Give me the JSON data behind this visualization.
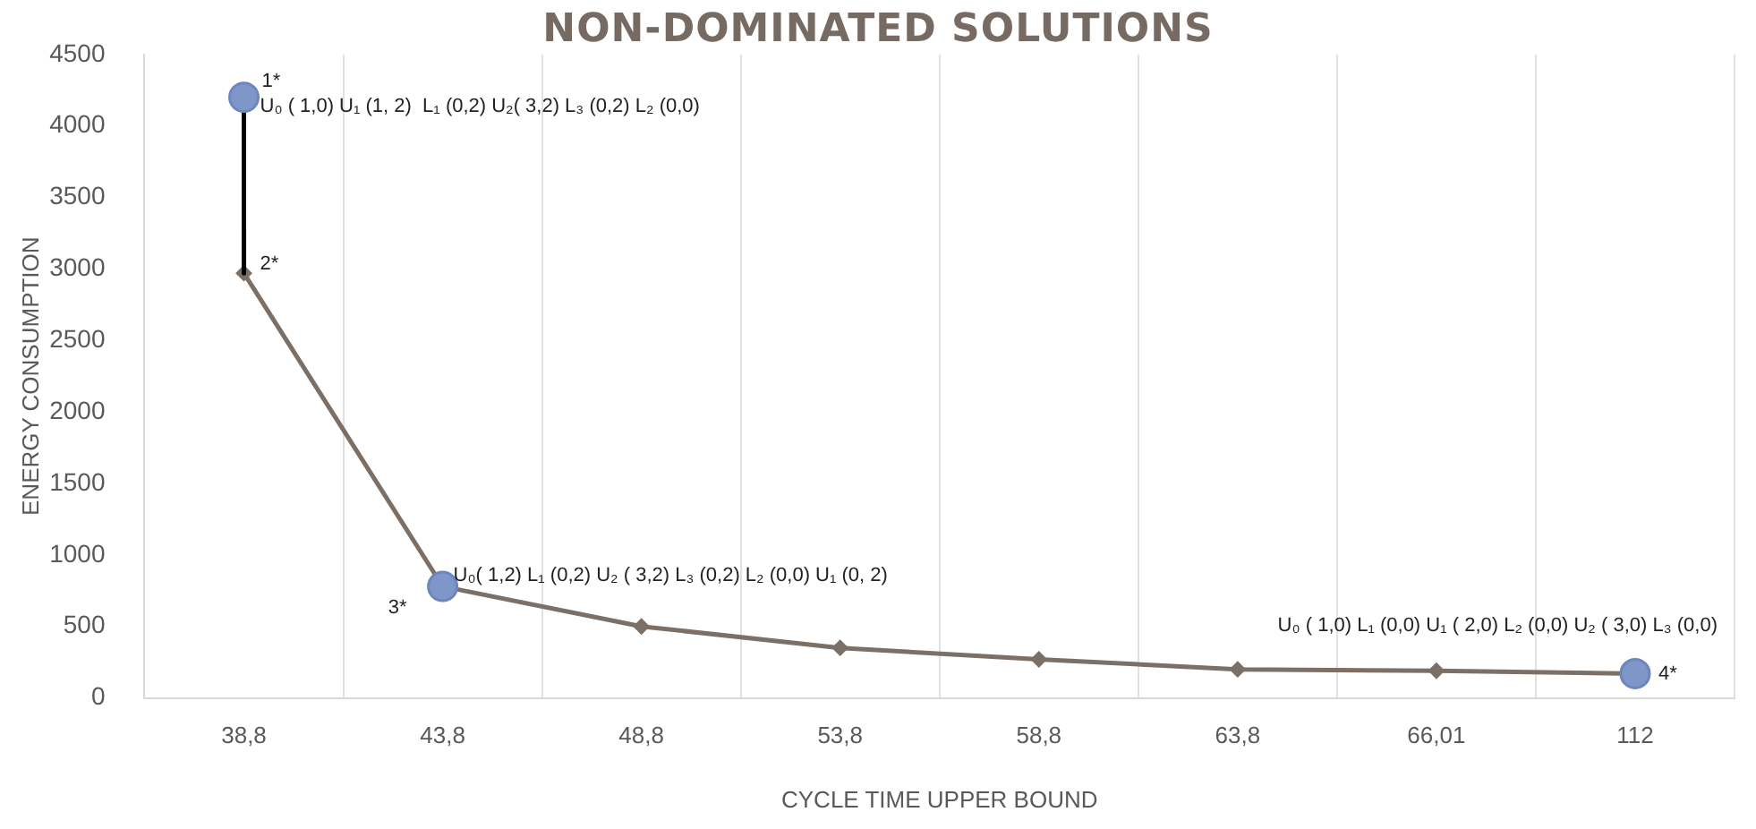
{
  "chart_data": {
    "type": "line",
    "title": "NON-DOMINATED SOLUTIONS",
    "xlabel": "CYCLE TIME UPPER BOUND",
    "ylabel": "ENERGY CONSUMPTION",
    "categories": [
      "38,8",
      "43,8",
      "48,8",
      "53,8",
      "58,8",
      "63,8",
      "66,01",
      "112"
    ],
    "series": [
      {
        "type": "line",
        "color": "#000000",
        "marker": "none",
        "x": [
          "38,8",
          "38,8"
        ],
        "values": [
          4200,
          2970
        ]
      },
      {
        "color": "#7b6f66",
        "marker": "diamond",
        "values": [
          2970,
          780,
          500,
          350,
          270,
          200,
          190,
          170
        ]
      },
      {
        "type": "scatter",
        "color": "#7f96c8",
        "marker": "circle",
        "x": [
          "38,8",
          "43,8",
          "112"
        ],
        "values": [
          4200,
          780,
          170
        ]
      }
    ],
    "ylim": [
      0,
      4500
    ],
    "yticks": [
      0,
      500,
      1000,
      1500,
      2000,
      2500,
      3000,
      3500,
      4000,
      4500
    ],
    "grid": "x",
    "legend": false,
    "annotations": [
      {
        "text": "1*",
        "x": "38,8",
        "y": 4200
      },
      {
        "text": "U₀ ( 1,0) U₁ (1, 2)  L₁ (0,2) U₂( 3,2) L₃ (0,2) L₂ (0,0)",
        "x": "38,8",
        "y": 4200
      },
      {
        "text": "2*",
        "x": "38,8",
        "y": 2970
      },
      {
        "text": "3*",
        "x": "43,8",
        "y": 780
      },
      {
        "text": "U₀( 1,2) L₁ (0,2) U₂ ( 3,2) L₃ (0,2) L₂ (0,0) U₁ (0, 2)",
        "x": "43,8",
        "y": 780
      },
      {
        "text": "U₀ ( 1,0) L₁ (0,0) U₁ ( 2,0) L₂ (0,0) U₂ ( 3,0) L₃ (0,0)",
        "x": "112",
        "y": 170
      },
      {
        "text": "4*",
        "x": "112",
        "y": 170
      }
    ]
  }
}
